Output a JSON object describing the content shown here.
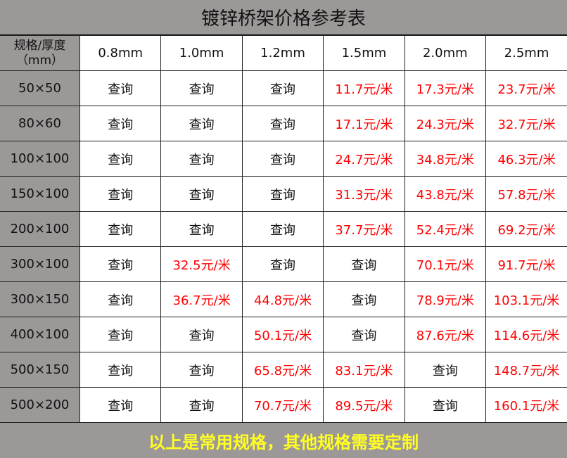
{
  "title": "镀锌桥架价格参考表",
  "header": {
    "corner_line1": "规格/厚度",
    "corner_line2": "（mm）",
    "columns": [
      "0.8mm",
      "1.0mm",
      "1.2mm",
      "1.5mm",
      "2.0mm",
      "2.5mm"
    ]
  },
  "rows": [
    {
      "spec": "50×50",
      "cells": [
        "查询",
        "查询",
        "查询",
        "11.7元/米",
        "17.3元/米",
        "23.7元/米"
      ]
    },
    {
      "spec": "80×60",
      "cells": [
        "查询",
        "查询",
        "查询",
        "17.1元/米",
        "24.3元/米",
        "32.7元/米"
      ]
    },
    {
      "spec": "100×100",
      "cells": [
        "查询",
        "查询",
        "查询",
        "24.7元/米",
        "34.8元/米",
        "46.3元/米"
      ]
    },
    {
      "spec": "150×100",
      "cells": [
        "查询",
        "查询",
        "查询",
        "31.3元/米",
        "43.8元/米",
        "57.8元/米"
      ]
    },
    {
      "spec": "200×100",
      "cells": [
        "查询",
        "查询",
        "查询",
        "37.7元/米",
        "52.4元/米",
        "69.2元/米"
      ]
    },
    {
      "spec": "300×100",
      "cells": [
        "查询",
        "32.5元/米",
        "查询",
        "查询",
        "70.1元/米",
        "91.7元/米"
      ]
    },
    {
      "spec": "300×150",
      "cells": [
        "查询",
        "36.7元/米",
        "44.8元/米",
        "查询",
        "78.9元/米",
        "103.1元/米"
      ]
    },
    {
      "spec": "400×100",
      "cells": [
        "查询",
        "查询",
        "50.1元/米",
        "查询",
        "87.6元/米",
        "114.6元/米"
      ]
    },
    {
      "spec": "500×150",
      "cells": [
        "查询",
        "查询",
        "65.8元/米",
        "83.1元/米",
        "查询",
        "148.7元/米"
      ]
    },
    {
      "spec": "500×200",
      "cells": [
        "查询",
        "查询",
        "70.7元/米",
        "89.5元/米",
        "查询",
        "160.1元/米"
      ]
    }
  ],
  "footer": "以上是常用规格，其他规格需要定制",
  "colors": {
    "header_bg": "#9d9898",
    "price": "#ff0000",
    "footer_text": "#ffff22"
  }
}
